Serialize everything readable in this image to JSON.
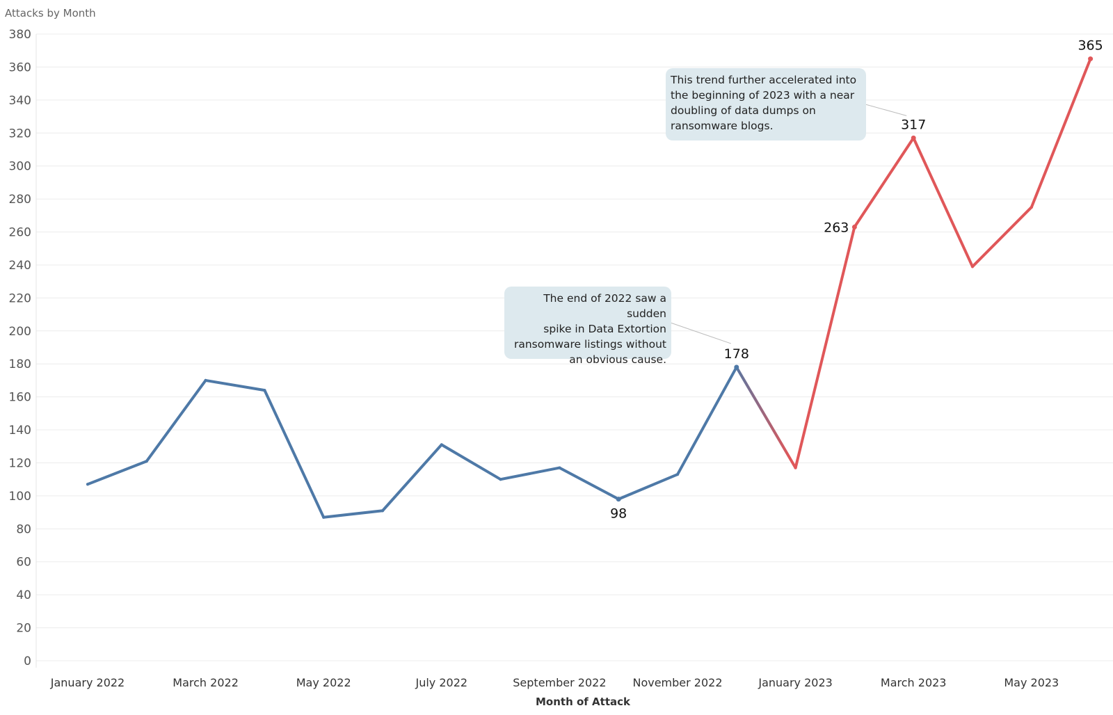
{
  "chart_data": {
    "type": "line",
    "title": "Attacks by Month",
    "xlabel": "Month of Attack",
    "ylabel": "",
    "ylim": [
      0,
      380
    ],
    "yticks": [
      0,
      20,
      40,
      60,
      80,
      100,
      120,
      140,
      160,
      180,
      200,
      220,
      240,
      260,
      280,
      300,
      320,
      340,
      360,
      380
    ],
    "grid": true,
    "x": [
      "January 2022",
      "February 2022",
      "March 2022",
      "April 2022",
      "May 2022",
      "June 2022",
      "July 2022",
      "August 2022",
      "September 2022",
      "October 2022",
      "November 2022",
      "December 2022",
      "January 2023",
      "February 2023",
      "March 2023",
      "April 2023",
      "May 2023",
      "June 2023"
    ],
    "xtick_labels": [
      "January 2022",
      "March 2022",
      "May 2022",
      "July 2022",
      "September 2022",
      "November 2022",
      "January 2023",
      "March 2023",
      "May 2023"
    ],
    "values": [
      107,
      121,
      170,
      164,
      87,
      91,
      131,
      110,
      117,
      98,
      113,
      178,
      117,
      263,
      317,
      239,
      275,
      365
    ],
    "colors": {
      "before": "#4e79a7",
      "after": "#e05759"
    },
    "labeled_points": [
      {
        "x": "October 2022",
        "label": "98"
      },
      {
        "x": "December 2022",
        "label": "178"
      },
      {
        "x": "February 2023",
        "label": "263"
      },
      {
        "x": "March 2023",
        "label": "317"
      },
      {
        "x": "June 2023",
        "label": "365"
      }
    ],
    "annotations": [
      {
        "target": "December 2022",
        "lines": [
          "The end of 2022 saw a sudden",
          "spike in Data Extortion",
          "ransomware listings without",
          "an obvious cause."
        ]
      },
      {
        "target": "March 2023",
        "lines": [
          "This trend further accelerated into",
          "the beginning of 2023 with a near",
          "doubling of data dumps on",
          "ransomware blogs."
        ]
      }
    ]
  }
}
